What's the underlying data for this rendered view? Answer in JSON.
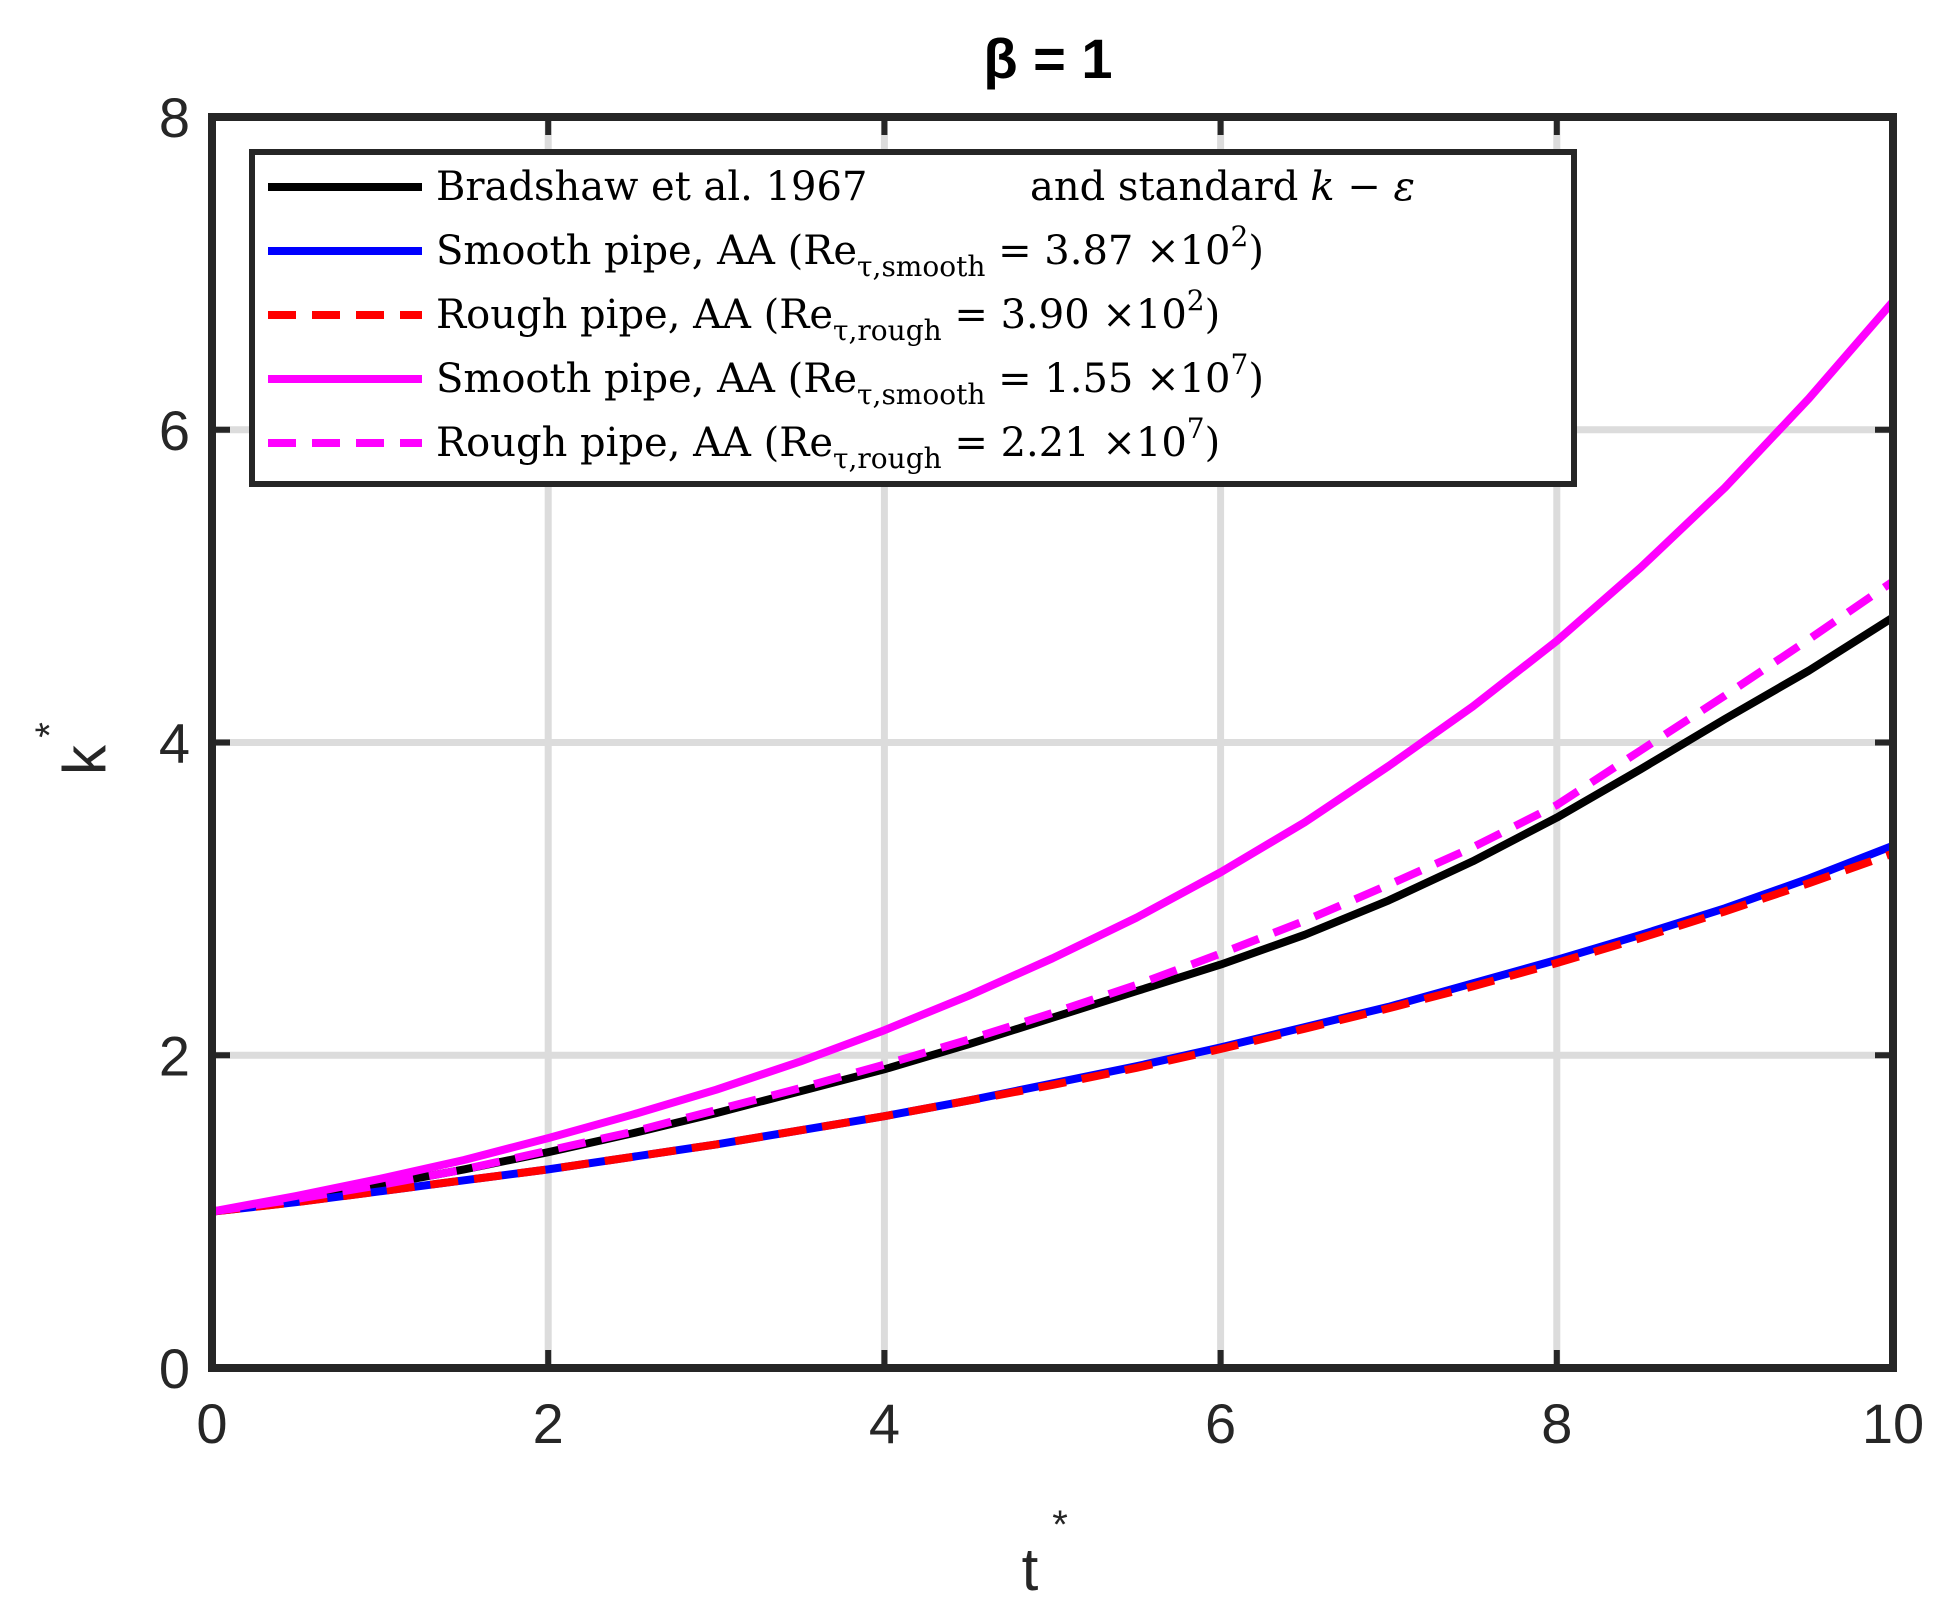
{
  "chart_data": {
    "type": "line",
    "title": "β = 1",
    "xlabel": "t",
    "ylabel": "k",
    "label_superscript": "*",
    "xlim": [
      0,
      10
    ],
    "ylim": [
      0,
      8
    ],
    "xticks": [
      "0",
      "2",
      "4",
      "6",
      "8",
      "10"
    ],
    "yticks": [
      "0",
      "2",
      "4",
      "6",
      "8"
    ],
    "grid": true,
    "legend_position": "top-left",
    "legend": [
      {
        "main": "Bradshaw et al. 1967",
        "suffix": "and standard",
        "math": "k − ε",
        "sub": "",
        "value": "",
        "exp": ""
      },
      {
        "main": "Smooth pipe, AA (Re",
        "sub": "τ,smooth",
        "value": " = 3.87 ×10",
        "exp": "2",
        "close": ")"
      },
      {
        "main": "Rough pipe, AA (Re",
        "sub": "τ,rough",
        "value": " = 3.90 ×10",
        "exp": "2",
        "close": ")"
      },
      {
        "main": "Smooth pipe, AA (Re",
        "sub": "τ,smooth",
        "value": " = 1.55 ×10",
        "exp": "7",
        "close": ")"
      },
      {
        "main": "Rough pipe, AA (Re",
        "sub": "τ,rough",
        "value": " = 2.21 ×10",
        "exp": "7",
        "close": ")"
      }
    ],
    "x": [
      0,
      0.5,
      1,
      1.5,
      2,
      2.5,
      3,
      3.5,
      4,
      4.5,
      5,
      5.5,
      6,
      6.5,
      7,
      7.5,
      8,
      8.5,
      9,
      9.5,
      10
    ],
    "series": [
      {
        "color": "#000000",
        "dash": "solid",
        "values": [
          1.0,
          1.08,
          1.17,
          1.27,
          1.38,
          1.5,
          1.63,
          1.77,
          1.91,
          2.07,
          2.24,
          2.41,
          2.58,
          2.77,
          2.99,
          3.24,
          3.52,
          3.83,
          4.15,
          4.46,
          4.8
        ]
      },
      {
        "color": "#0000ff",
        "dash": "solid",
        "values": [
          1.0,
          1.06,
          1.13,
          1.2,
          1.27,
          1.35,
          1.43,
          1.52,
          1.61,
          1.71,
          1.82,
          1.93,
          2.05,
          2.18,
          2.31,
          2.46,
          2.61,
          2.77,
          2.94,
          3.13,
          3.34
        ]
      },
      {
        "color": "#ff0000",
        "dash": "dashed",
        "values": [
          1.0,
          1.06,
          1.13,
          1.2,
          1.27,
          1.35,
          1.43,
          1.52,
          1.61,
          1.71,
          1.81,
          1.92,
          2.04,
          2.17,
          2.3,
          2.44,
          2.59,
          2.75,
          2.92,
          3.1,
          3.29
        ]
      },
      {
        "color": "#ff00ff",
        "dash": "solid",
        "values": [
          1.0,
          1.1,
          1.21,
          1.33,
          1.47,
          1.62,
          1.78,
          1.96,
          2.16,
          2.38,
          2.62,
          2.88,
          3.17,
          3.49,
          3.85,
          4.23,
          4.65,
          5.12,
          5.63,
          6.2,
          6.82
        ]
      },
      {
        "color": "#ff00ff",
        "dash": "dashed",
        "values": [
          1.0,
          1.08,
          1.17,
          1.27,
          1.39,
          1.51,
          1.65,
          1.79,
          1.94,
          2.1,
          2.27,
          2.45,
          2.65,
          2.86,
          3.09,
          3.33,
          3.6,
          3.95,
          4.3,
          4.66,
          5.03
        ]
      }
    ]
  }
}
